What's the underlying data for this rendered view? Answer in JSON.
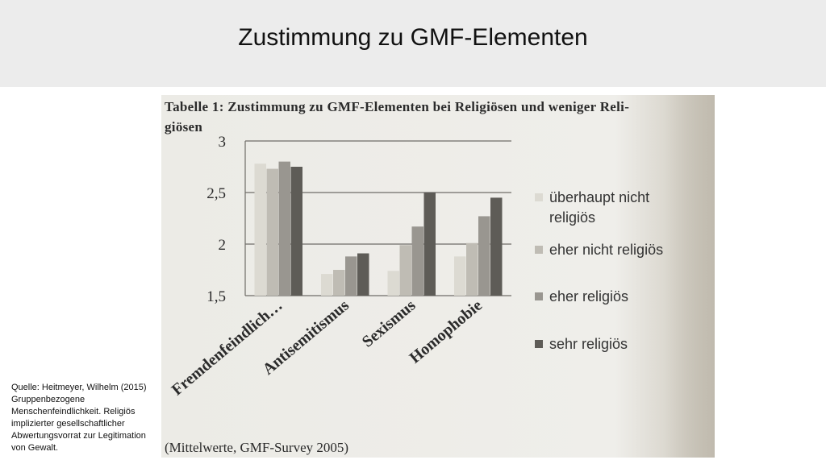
{
  "slide": {
    "title": "Zustimmung zu GMF-Elementen",
    "source_note": "Quelle: Heitmeyer, Wilhelm (2015) Gruppenbezogene Menschenfeindlichkeit. Religiös implizierter gesellschaftlicher Abwertungsvorrat zur Legitimation von Gewalt."
  },
  "figure": {
    "caption": "Tabelle 1: Zustimmung zu GMF-Elementen bei Religiösen und weniger Reli-giösen",
    "caption_line1": "Tabelle 1: Zustimmung zu GMF-Elementen bei Religiösen und weniger Reli-",
    "caption_line2": "giösen",
    "source": "(Mittelwerte, GMF-Survey 2005)"
  },
  "chart_data": {
    "type": "bar",
    "categories": [
      "Fremdenfeindlich…",
      "Antisemitismus",
      "Sexismus",
      "Homophobie"
    ],
    "series": [
      {
        "name": "überhaupt nicht religiös",
        "values": [
          2.78,
          1.71,
          1.74,
          1.88
        ]
      },
      {
        "name": "eher nicht religiös",
        "values": [
          2.73,
          1.75,
          1.99,
          2.01
        ]
      },
      {
        "name": "eher religiös",
        "values": [
          2.8,
          1.88,
          2.17,
          2.27
        ]
      },
      {
        "name": "sehr religiös",
        "values": [
          2.75,
          1.91,
          2.5,
          2.45
        ]
      }
    ],
    "ylim": [
      1.5,
      3
    ],
    "yticks": [
      "3",
      "2,5",
      "2",
      "1,5"
    ],
    "ytick_values": [
      3,
      2.5,
      2,
      1.5
    ],
    "grid": true,
    "legend_position": "right",
    "colors": [
      "#dcdad2",
      "#bfbcb4",
      "#999690",
      "#5e5c57"
    ]
  }
}
